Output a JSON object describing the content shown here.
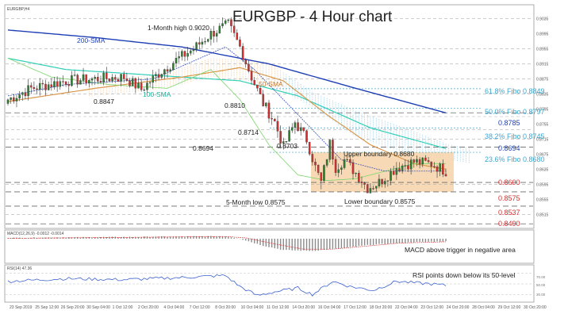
{
  "header": {
    "symbol_line": "EURGBP,H4",
    "macd_line": "MACD(12,26,9) -0.0012 -0.0014",
    "rsi_line": "RSI(14) 47.36"
  },
  "chart_data": {
    "type": "candlestick",
    "title": "EURGBP - 4 Hour chart",
    "ylim": [
      0.848,
      0.907
    ],
    "price_ticks": [
      "0.9035",
      "0.8995",
      "0.8955",
      "0.8915",
      "0.8875",
      "0.8835",
      "0.8795",
      "0.8755",
      "0.8715",
      "0.8675",
      "0.8635",
      "0.8595",
      "0.8555",
      "0.8515"
    ],
    "x_ticks": [
      "23 Sep 2019",
      "25 Sep 12:00",
      "26 Sep 20:00",
      "30 Sep 04:00",
      "1 Oct 12:00",
      "2 Oct 20:00",
      "4 Oct 04:00",
      "7 Oct 12:00",
      "8 Oct 20:00",
      "10 Oct 04:00",
      "11 Oct 12:00",
      "14 Oct 20:00",
      "16 Oct 04:00",
      "17 Oct 12:00",
      "18 Oct 20:00",
      "22 Oct 04:00",
      "23 Oct 12:00",
      "24 Oct 20:00",
      "28 Oct 04:00",
      "29 Oct 12:00",
      "30 Oct 20:00"
    ],
    "fibo_levels": [
      {
        "label": "61.8% Fibo 0.8849",
        "value": 0.8849
      },
      {
        "label": "50.0% Fibo 0.8797",
        "value": 0.8797
      },
      {
        "label": "38.2% Fibo 0.8745",
        "value": 0.8745
      },
      {
        "label": "23.6% Fibo 0.8680",
        "value": 0.868
      }
    ],
    "support_resistance": [
      {
        "label": "0.8785",
        "value": 0.8785
      },
      {
        "label": "0.8694",
        "value": 0.8694
      },
      {
        "label": "0.8600",
        "value": 0.86
      },
      {
        "label": "0.8575",
        "value": 0.8575
      },
      {
        "label": "0.8537",
        "value": 0.8537
      },
      {
        "label": "0.8490",
        "value": 0.849
      }
    ],
    "annotations": {
      "high": "1-Month high 0.9020",
      "sma200": "200-SMA",
      "sma50": "50-SMA",
      "sma100": "100-SMA",
      "p8847": "0.8847",
      "p8810": "0.8810",
      "p8714": "0.8714",
      "p8703": "0.8703",
      "p8694": "0.8694",
      "upper": "Upper boundary 0.8680",
      "lower": "Lower boundary 0.8575",
      "low5m": "5-Month low 0.8575",
      "macd_note": "MACD above trigger in negative area",
      "rsi_note": "RSI points down below its 50-level"
    },
    "rsi_ticks": [
      "70.00",
      "50.00",
      "30.00"
    ],
    "colors": {
      "bull": "#2e7d32",
      "bear": "#d32f2f",
      "sma200": "#1f3fb5",
      "sma100": "#2ecfb7",
      "sma50": "#d9984d",
      "fibo": "#3aa6d0",
      "sr": "#d32f2f",
      "box": "#f6d3a8"
    }
  }
}
